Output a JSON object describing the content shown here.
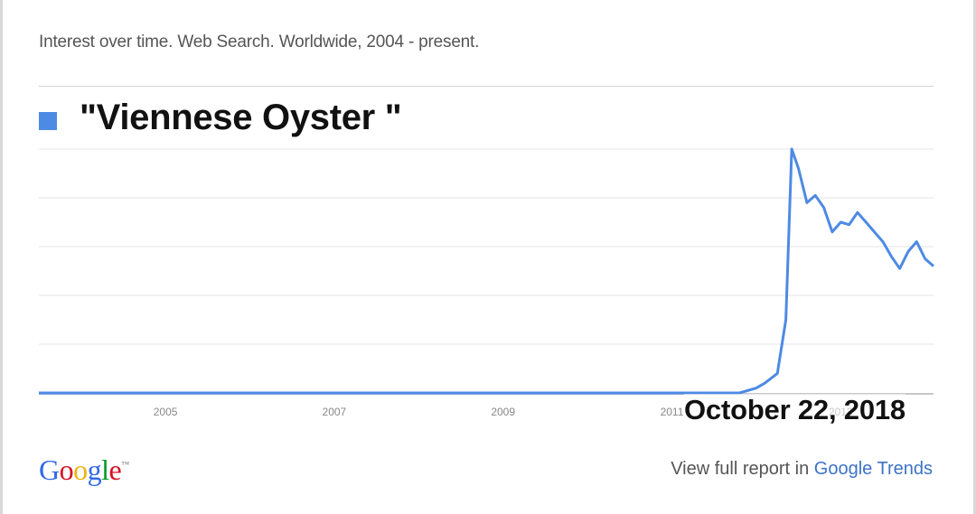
{
  "header": {
    "subtitle": "Interest over time. Web Search. Worldwide, 2004 - present."
  },
  "legend": {
    "label": "\"Viennese Oyster \"",
    "color": "#4d8ae4"
  },
  "overlay": {
    "date_text": "October 22, 2018"
  },
  "footer": {
    "logo_letters": [
      "G",
      "o",
      "o",
      "g",
      "l",
      "e"
    ],
    "logo_colors": [
      "#3369e8",
      "#d50f25",
      "#eeb211",
      "#3369e8",
      "#009925",
      "#d50f25"
    ],
    "logo_tm": "™",
    "report_prefix": "View full report in ",
    "report_link": "Google Trends"
  },
  "chart_data": {
    "type": "line",
    "title": "",
    "xlabel": "",
    "ylabel": "",
    "x_tick_labels": [
      "2005",
      "2007",
      "2009",
      "2011",
      "2013"
    ],
    "xlim": [
      2004,
      2014.6
    ],
    "ylim": [
      0,
      100
    ],
    "grid": true,
    "legend_position": "top-left",
    "series": [
      {
        "name": "\"Viennese Oyster \"",
        "color": "#4d8ae4",
        "x": [
          2004,
          2012.0,
          2012.3,
          2012.5,
          2012.6,
          2012.75,
          2012.85,
          2012.92,
          2013.0,
          2013.1,
          2013.2,
          2013.3,
          2013.4,
          2013.5,
          2013.6,
          2013.7,
          2013.8,
          2013.9,
          2014.0,
          2014.1,
          2014.2,
          2014.3,
          2014.4,
          2014.5,
          2014.6
        ],
        "values": [
          0,
          0,
          0,
          2,
          4,
          8,
          30,
          100,
          92,
          78,
          81,
          76,
          66,
          70,
          69,
          74,
          70,
          66,
          62,
          56,
          51,
          58,
          62,
          55,
          52
        ]
      }
    ]
  }
}
